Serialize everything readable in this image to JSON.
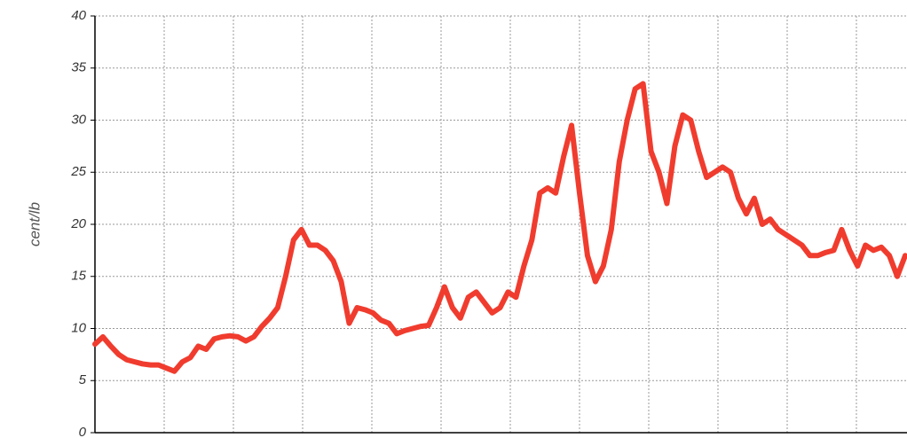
{
  "chart_data": {
    "type": "line",
    "ylabel": "cent/lb",
    "categories": [
      null,
      null,
      null,
      null,
      null,
      null,
      null,
      null,
      null,
      null,
      null,
      null,
      null,
      null,
      null,
      null,
      null,
      null,
      null,
      null,
      null,
      null,
      null,
      null,
      null,
      null,
      null,
      null,
      null,
      null,
      null,
      null,
      null,
      null,
      null,
      null,
      null,
      null,
      null,
      null,
      null,
      null,
      null,
      null,
      null,
      null,
      null,
      null,
      null,
      null,
      null,
      null,
      null,
      null,
      null,
      null,
      null,
      null,
      null,
      null,
      null,
      null,
      null,
      null,
      null,
      null,
      null,
      null,
      null,
      null,
      null,
      null,
      null,
      null,
      null,
      null,
      null,
      null,
      null,
      null,
      null,
      null,
      null,
      null,
      null,
      null,
      null,
      null,
      null,
      null,
      null,
      null,
      null,
      null,
      null,
      null,
      null,
      null,
      null,
      null,
      null,
      null,
      null
    ],
    "values": [
      8.5,
      9.2,
      8.3,
      7.5,
      7.0,
      6.8,
      6.6,
      6.5,
      6.5,
      6.2,
      5.9,
      6.8,
      7.2,
      8.3,
      8.0,
      9.0,
      9.2,
      9.3,
      9.2,
      8.8,
      9.2,
      10.2,
      11.0,
      12.0,
      15.0,
      18.5,
      19.5,
      18.0,
      18.0,
      17.5,
      16.5,
      14.5,
      10.5,
      12.0,
      11.8,
      11.5,
      10.8,
      10.5,
      9.5,
      9.8,
      10.0,
      10.2,
      10.3,
      12.0,
      14.0,
      12.0,
      11.0,
      13.0,
      13.5,
      12.5,
      11.5,
      12.0,
      13.5,
      13.0,
      16.0,
      18.5,
      23.0,
      23.5,
      23.0,
      26.5,
      29.5,
      23.0,
      17.0,
      14.5,
      16.0,
      19.5,
      26.0,
      30.0,
      33.0,
      33.5,
      27.0,
      25.0,
      22.0,
      27.5,
      30.5,
      30.0,
      27.0,
      24.5,
      25.0,
      25.5,
      25.0,
      22.5,
      21.0,
      22.5,
      20.0,
      20.5,
      19.5,
      19.0,
      18.5,
      18.0,
      17.0,
      17.0,
      17.3,
      17.5,
      19.5,
      17.5,
      16.0,
      18.0,
      17.5,
      17.8,
      17.0,
      15.0,
      17.0
    ],
    "color": "#f03c2e",
    "ylim": [
      0,
      40
    ],
    "yticks": [
      0,
      5,
      10,
      15,
      20,
      25,
      30,
      35,
      40
    ],
    "grid": true
  }
}
